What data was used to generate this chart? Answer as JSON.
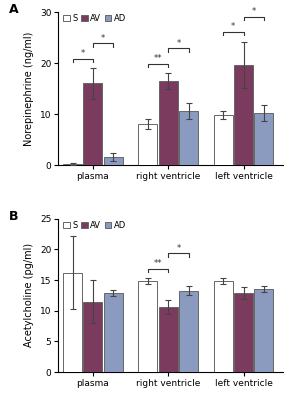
{
  "panel_A": {
    "title": "A",
    "ylabel": "Norepinephrine (ng/ml)",
    "ylim": [
      0,
      30
    ],
    "yticks": [
      0,
      10,
      20,
      30
    ],
    "groups": [
      "plasma",
      "right ventricle",
      "left ventricle"
    ],
    "series": {
      "S": {
        "values": [
          0.3,
          8.0,
          9.8
        ],
        "errors": [
          0.2,
          1.0,
          0.8
        ]
      },
      "AV": {
        "values": [
          16.0,
          16.5,
          19.7
        ],
        "errors": [
          3.0,
          1.5,
          4.5
        ]
      },
      "AD": {
        "values": [
          1.6,
          10.6,
          10.2
        ],
        "errors": [
          0.8,
          1.5,
          1.5
        ]
      }
    },
    "significance": [
      {
        "group": 0,
        "pairs": [
          [
            0,
            1,
            "*"
          ],
          [
            1,
            2,
            "*"
          ]
        ]
      },
      {
        "group": 1,
        "pairs": [
          [
            0,
            1,
            "**"
          ],
          [
            1,
            2,
            "*"
          ]
        ]
      },
      {
        "group": 2,
        "pairs": [
          [
            0,
            1,
            "*"
          ],
          [
            1,
            2,
            "*"
          ]
        ]
      }
    ]
  },
  "panel_B": {
    "title": "B",
    "ylabel": "Acetylcholine (pg/ml)",
    "ylim": [
      0,
      25
    ],
    "yticks": [
      0,
      5,
      10,
      15,
      20,
      25
    ],
    "groups": [
      "plasma",
      "right ventricle",
      "left ventricle"
    ],
    "series": {
      "S": {
        "values": [
          16.2,
          14.8,
          14.8
        ],
        "errors": [
          6.0,
          0.5,
          0.5
        ]
      },
      "AV": {
        "values": [
          11.5,
          10.6,
          12.9
        ],
        "errors": [
          3.5,
          1.2,
          1.0
        ]
      },
      "AD": {
        "values": [
          12.9,
          13.3,
          13.5
        ],
        "errors": [
          0.5,
          0.8,
          0.5
        ]
      }
    },
    "significance": [
      {
        "group": 1,
        "pairs": [
          [
            0,
            1,
            "**"
          ],
          [
            1,
            2,
            "*"
          ]
        ]
      }
    ]
  },
  "colors": {
    "S": "#FFFFFF",
    "AV": "#7B3B5E",
    "AD": "#8B9BBF"
  },
  "edge_color": "#666666",
  "bar_width": 0.18,
  "group_centers": [
    0.28,
    1.0,
    1.72
  ],
  "legend_labels": [
    "S",
    "AV",
    "AD"
  ],
  "sig_line_color": "#333333",
  "sig_text_color": "#333333",
  "background_color": "#FFFFFF",
  "font_size": 6.5,
  "label_font_size": 7.0,
  "title_fontsize": 9
}
